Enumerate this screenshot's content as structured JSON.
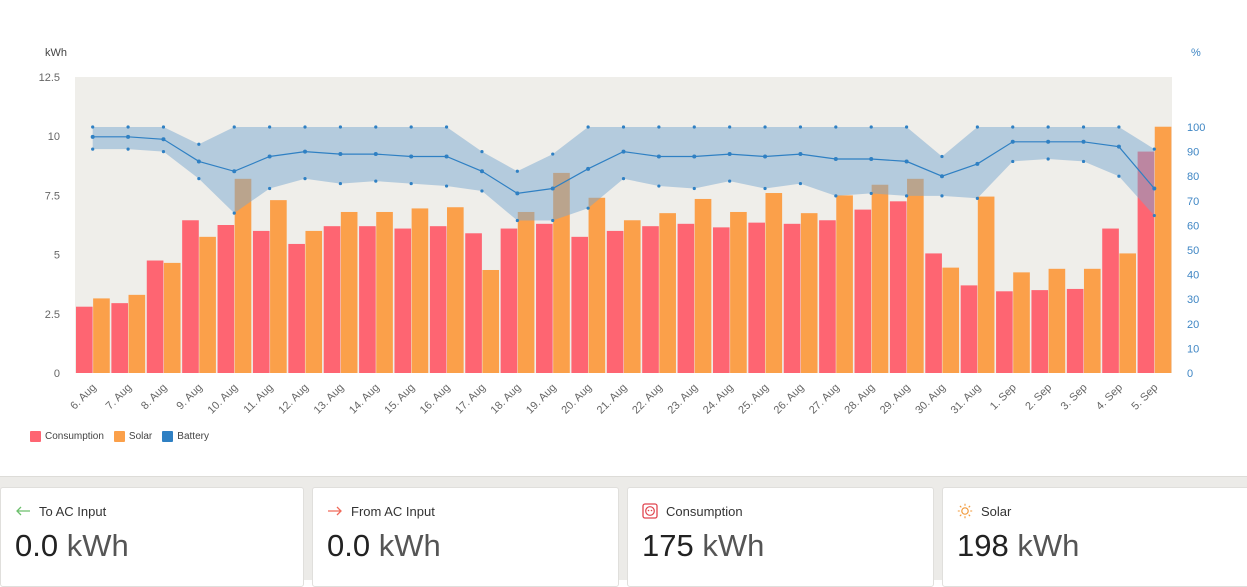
{
  "chart_data": {
    "type": "bar",
    "categories": [
      "6. Aug",
      "7. Aug",
      "8. Aug",
      "9. Aug",
      "10. Aug",
      "11. Aug",
      "12. Aug",
      "13. Aug",
      "14. Aug",
      "15. Aug",
      "16. Aug",
      "17. Aug",
      "18. Aug",
      "19. Aug",
      "20. Aug",
      "21. Aug",
      "22. Aug",
      "23. Aug",
      "24. Aug",
      "25. Aug",
      "26. Aug",
      "27. Aug",
      "28. Aug",
      "29. Aug",
      "30. Aug",
      "31. Aug",
      "1. Sep",
      "2. Sep",
      "3. Sep",
      "4. Sep",
      "5. Sep"
    ],
    "ylabel_left": "kWh",
    "ylabel_right": "%",
    "ylim_left": [
      0,
      12.5
    ],
    "yticks_left": [
      "0",
      "2.5",
      "5",
      "7.5",
      "10",
      "12.5"
    ],
    "ylim_right": [
      0,
      100
    ],
    "yticks_right": [
      "0",
      "10",
      "20",
      "30",
      "40",
      "50",
      "60",
      "70",
      "80",
      "90",
      "100"
    ],
    "series": [
      {
        "name": "Consumption",
        "kind": "bar",
        "color": "#fe6572",
        "values": [
          2.8,
          2.95,
          4.75,
          6.45,
          6.25,
          6.0,
          5.45,
          6.2,
          6.2,
          6.1,
          6.2,
          5.9,
          6.1,
          6.3,
          5.75,
          6.0,
          6.2,
          6.3,
          6.15,
          6.35,
          6.3,
          6.45,
          6.9,
          7.25,
          5.05,
          3.7,
          3.45,
          3.5,
          3.55,
          6.1,
          9.35
        ]
      },
      {
        "name": "Solar",
        "kind": "bar",
        "color": "#fba04a",
        "values": [
          3.15,
          3.3,
          4.65,
          5.75,
          8.2,
          7.3,
          6.0,
          6.8,
          6.8,
          6.95,
          7.0,
          4.35,
          6.8,
          8.45,
          7.4,
          6.45,
          6.75,
          7.35,
          6.8,
          7.6,
          6.75,
          7.5,
          7.95,
          8.2,
          4.45,
          7.45,
          4.25,
          4.4,
          4.4,
          5.05,
          10.4
        ]
      },
      {
        "name": "Battery",
        "kind": "line",
        "color": "#2f80c3",
        "band_color": "#7aa8cf",
        "avg": [
          96,
          96,
          95,
          86,
          82,
          88,
          90,
          89,
          89,
          88,
          88,
          82,
          73,
          75,
          83,
          90,
          88,
          88,
          89,
          88,
          89,
          87,
          87,
          86,
          80,
          85,
          94,
          94,
          94,
          92,
          75
        ],
        "max": [
          100,
          100,
          100,
          93,
          100,
          100,
          100,
          100,
          100,
          100,
          100,
          90,
          82,
          89,
          100,
          100,
          100,
          100,
          100,
          100,
          100,
          100,
          100,
          100,
          88,
          100,
          100,
          100,
          100,
          100,
          91
        ],
        "min": [
          91,
          91,
          90,
          79,
          65,
          75,
          79,
          77,
          78,
          77,
          76,
          74,
          62,
          62,
          67,
          79,
          76,
          75,
          78,
          75,
          77,
          72,
          73,
          72,
          72,
          71,
          86,
          87,
          86,
          80,
          64
        ]
      }
    ]
  },
  "legend": [
    {
      "label": "Consumption",
      "color": "#fe6572"
    },
    {
      "label": "Solar",
      "color": "#fba04a"
    },
    {
      "label": "Battery",
      "color": "#2f80c3"
    }
  ],
  "cards": [
    {
      "label": "To AC Input",
      "value": "0.0",
      "unit": "kWh",
      "icon": "arrow-left-icon",
      "icon_color": "#6cbf6c"
    },
    {
      "label": "From AC Input",
      "value": "0.0",
      "unit": "kWh",
      "icon": "arrow-right-icon",
      "icon_color": "#f06a5a"
    },
    {
      "label": "Consumption",
      "value": "175",
      "unit": "kWh",
      "icon": "socket-icon",
      "icon_color": "#e0454f"
    },
    {
      "label": "Solar",
      "value": "198",
      "unit": "kWh",
      "icon": "sun-icon",
      "icon_color": "#f29a3a"
    }
  ]
}
